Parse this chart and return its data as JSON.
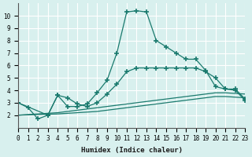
{
  "xlabel": "Humidex (Indice chaleur)",
  "xlim": [
    0,
    23
  ],
  "ylim": [
    1,
    11
  ],
  "yticks": [
    2,
    3,
    4,
    5,
    6,
    7,
    8,
    9,
    10
  ],
  "xticks": [
    0,
    1,
    2,
    3,
    4,
    5,
    6,
    7,
    8,
    9,
    10,
    11,
    12,
    13,
    14,
    15,
    16,
    17,
    18,
    19,
    20,
    21,
    22,
    23
  ],
  "bg_color": "#d8f0ee",
  "line_color": "#1a7a6e",
  "grid_color": "#ffffff",
  "lines": [
    {
      "x": [
        0,
        1,
        2,
        3,
        4,
        5,
        6,
        7,
        8,
        9,
        10,
        11,
        12,
        13,
        14,
        15,
        16,
        17,
        18,
        19,
        20,
        21,
        22,
        23
      ],
      "y": [
        3.0,
        2.6,
        1.7,
        2.0,
        3.6,
        2.7,
        2.7,
        2.9,
        3.8,
        4.8,
        7.0,
        10.3,
        10.4,
        10.3,
        8.0,
        7.5,
        7.0,
        6.5,
        6.5,
        5.6,
        4.3,
        4.1,
        4.1,
        3.3
      ],
      "marker": "+"
    },
    {
      "x": [
        0,
        3,
        4,
        5,
        6,
        7,
        8,
        9,
        10,
        11,
        12,
        13,
        14,
        15,
        16,
        17,
        18,
        19,
        20,
        21,
        22,
        23
      ],
      "y": [
        3.0,
        2.0,
        3.6,
        3.4,
        2.9,
        2.7,
        3.0,
        3.7,
        4.5,
        5.5,
        5.8,
        5.8,
        5.8,
        5.8,
        5.8,
        5.8,
        5.8,
        5.5,
        5.0,
        4.1,
        4.0,
        3.2
      ],
      "marker": "+"
    },
    {
      "x": [
        0,
        1,
        2,
        3,
        4,
        5,
        6,
        7,
        8,
        9,
        10,
        11,
        12,
        13,
        14,
        15,
        16,
        17,
        18,
        19,
        20,
        21,
        22,
        23
      ],
      "y": [
        2.0,
        2.05,
        2.1,
        2.15,
        2.2,
        2.3,
        2.4,
        2.5,
        2.6,
        2.7,
        2.8,
        2.9,
        3.0,
        3.1,
        3.2,
        3.3,
        3.4,
        3.5,
        3.6,
        3.7,
        3.8,
        3.8,
        3.75,
        3.7
      ],
      "marker": null
    },
    {
      "x": [
        0,
        1,
        2,
        3,
        4,
        5,
        6,
        7,
        8,
        9,
        10,
        11,
        12,
        13,
        14,
        15,
        16,
        17,
        18,
        19,
        20,
        21,
        22,
        23
      ],
      "y": [
        2.0,
        2.02,
        2.05,
        2.08,
        2.1,
        2.15,
        2.2,
        2.25,
        2.3,
        2.4,
        2.5,
        2.6,
        2.7,
        2.8,
        2.9,
        3.0,
        3.1,
        3.2,
        3.3,
        3.4,
        3.5,
        3.5,
        3.45,
        3.4
      ],
      "marker": null
    }
  ]
}
